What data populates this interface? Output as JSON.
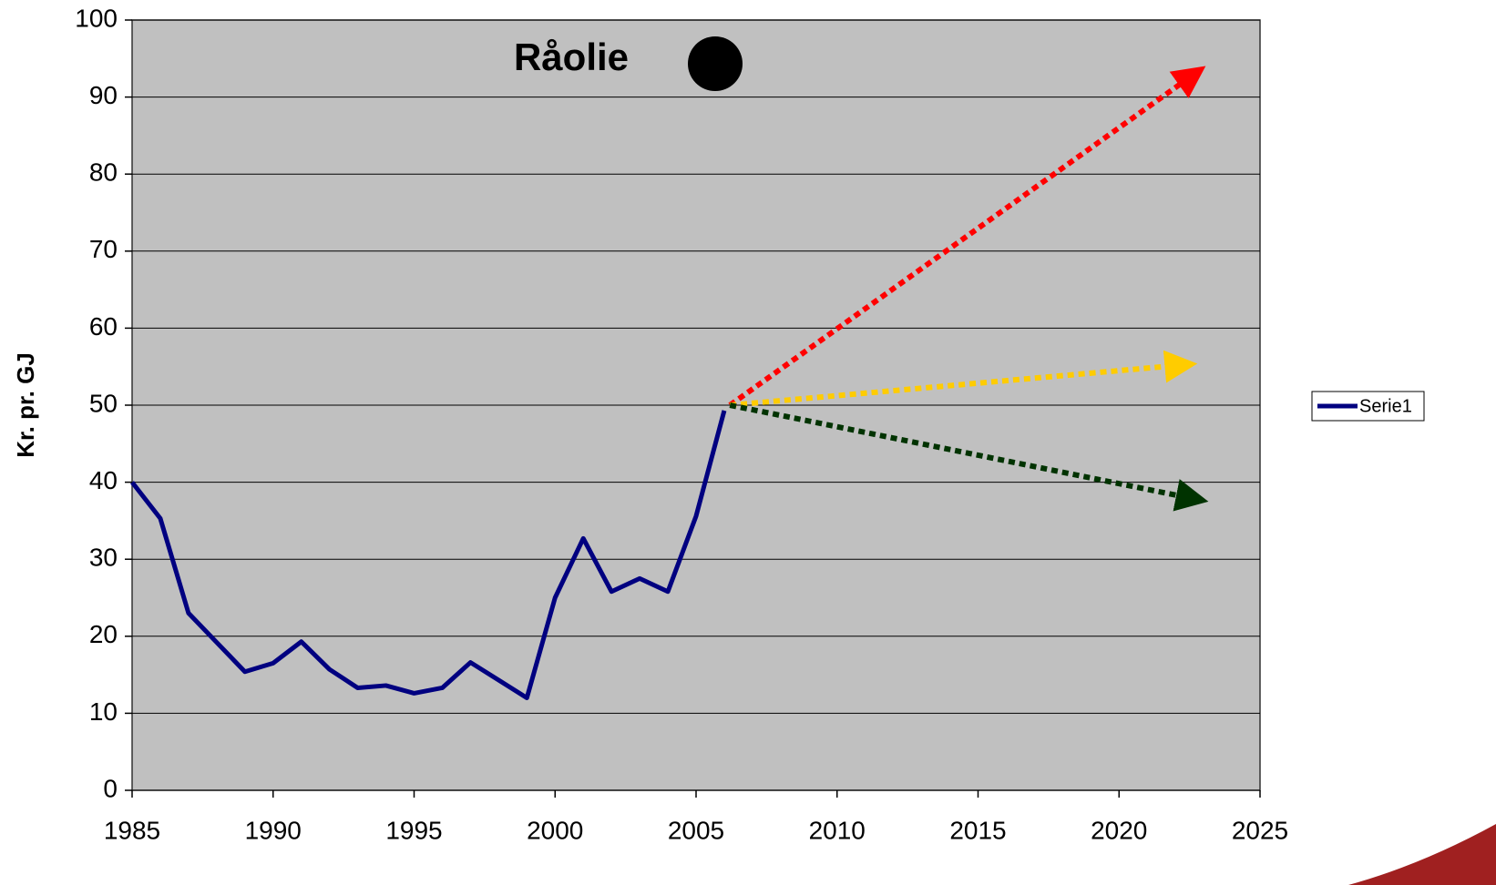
{
  "chart_data": {
    "type": "line",
    "title": "Råolie",
    "y_label": "Kr. pr. GJ",
    "x": [
      1985,
      1986,
      1987,
      1988,
      1989,
      1990,
      1991,
      1992,
      1993,
      1994,
      1995,
      1996,
      1997,
      1998,
      1999,
      2000,
      2001,
      2002,
      2003,
      2004,
      2005,
      2006
    ],
    "series": [
      {
        "name": "Serie1",
        "color": "#000080",
        "values": [
          40,
          35.3,
          23,
          19.2,
          15.4,
          16.5,
          19.3,
          15.7,
          13.3,
          13.6,
          12.6,
          13.3,
          16.6,
          14.3,
          12,
          25,
          32.7,
          25.8,
          27.5,
          25.8,
          35.6,
          49.3
        ]
      }
    ],
    "arrows": [
      {
        "color": "#ff0000",
        "x": [
          2006.2,
          2022.6
        ],
        "values": [
          50,
          92.8
        ]
      },
      {
        "color": "#ffcc00",
        "x": [
          2006.2,
          2022.2
        ],
        "values": [
          50,
          55.2
        ]
      },
      {
        "color": "#003300",
        "x": [
          2006.2,
          2022.6
        ],
        "values": [
          50,
          37.9
        ]
      }
    ],
    "xlim": [
      1985,
      2025
    ],
    "xticks": [
      1985,
      1990,
      1995,
      2000,
      2005,
      2010,
      2015,
      2020,
      2025
    ],
    "ylim": [
      0,
      100
    ],
    "yticks": [
      0,
      10,
      20,
      30,
      40,
      50,
      60,
      70,
      80,
      90,
      100
    ],
    "grid": true,
    "plot_background": "#c0c0c0",
    "legend": "right"
  }
}
